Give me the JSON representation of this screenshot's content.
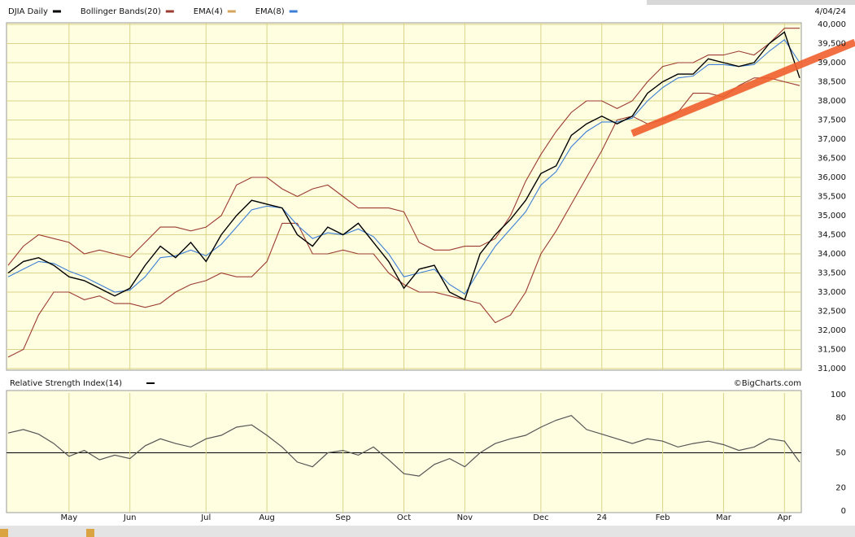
{
  "chart_data": [
    {
      "type": "line",
      "date": "4/04/24",
      "series": [
        {
          "name": "DJIA Daily",
          "color": "#000000",
          "values": [
            33500,
            33800,
            33900,
            33700,
            33400,
            33300,
            33100,
            32900,
            33100,
            33700,
            34200,
            33900,
            34300,
            33800,
            34500,
            35000,
            35400,
            35300,
            35200,
            34500,
            34200,
            34700,
            34500,
            34800,
            34300,
            33800,
            33100,
            33600,
            33700,
            33000,
            32800,
            34000,
            34500,
            34900,
            35400,
            36100,
            36300,
            37100,
            37400,
            37600,
            37400,
            37600,
            38200,
            38500,
            38700,
            38700,
            39100,
            39000,
            38900,
            39000,
            39500,
            39800,
            38600
          ]
        },
        {
          "name": "Bollinger Bands(20)",
          "color": "#9b3b32",
          "upper": [
            33700,
            34200,
            34500,
            34400,
            34300,
            34000,
            34100,
            34000,
            33900,
            34300,
            34700,
            34700,
            34600,
            34700,
            35000,
            35800,
            36000,
            36000,
            35700,
            35500,
            35700,
            35800,
            35500,
            35200,
            35200,
            35200,
            35100,
            34300,
            34100,
            34100,
            34200,
            34200,
            34400,
            35000,
            35900,
            36600,
            37200,
            37700,
            38000,
            38000,
            37800,
            38000,
            38500,
            38900,
            39000,
            39000,
            39200,
            39200,
            39300,
            39200,
            39500,
            39900,
            39900
          ],
          "lower": [
            31300,
            31500,
            32400,
            33000,
            33000,
            32800,
            32900,
            32700,
            32700,
            32600,
            32700,
            33000,
            33200,
            33300,
            33500,
            33400,
            33400,
            33800,
            34800,
            34800,
            34000,
            34000,
            34100,
            34000,
            34000,
            33500,
            33200,
            33000,
            33000,
            32900,
            32800,
            32700,
            32200,
            32400,
            33000,
            34000,
            34600,
            35300,
            36000,
            36700,
            37500,
            37600,
            37400,
            37500,
            37700,
            38200,
            38200,
            38100,
            38400,
            38600,
            38600,
            38500,
            38400
          ]
        },
        {
          "name": "EMA(4)",
          "color": "#d4a55a"
        },
        {
          "name": "EMA(8)",
          "color": "#3d7fd6",
          "values": [
            33400,
            33600,
            33800,
            33750,
            33550,
            33400,
            33200,
            33000,
            33050,
            33400,
            33900,
            33950,
            34100,
            33950,
            34250,
            34700,
            35150,
            35250,
            35200,
            34750,
            34400,
            34550,
            34500,
            34650,
            34450,
            34000,
            33400,
            33500,
            33600,
            33200,
            32950,
            33600,
            34200,
            34650,
            35100,
            35800,
            36150,
            36800,
            37200,
            37450,
            37450,
            37550,
            38000,
            38350,
            38600,
            38650,
            38950,
            38950,
            38900,
            38950,
            39300,
            39600,
            39000
          ]
        }
      ],
      "ylim": [
        31000,
        40000
      ],
      "yticks": [
        {
          "value": 31000,
          "label": "31,000"
        },
        {
          "value": 31500,
          "label": "31,500"
        },
        {
          "value": 32000,
          "label": "32,000"
        },
        {
          "value": 32500,
          "label": "32,500"
        },
        {
          "value": 33000,
          "label": "33,000"
        },
        {
          "value": 33500,
          "label": "33,500"
        },
        {
          "value": 34000,
          "label": "34,000"
        },
        {
          "value": 34500,
          "label": "34,500"
        },
        {
          "value": 35000,
          "label": "35,000"
        },
        {
          "value": 35500,
          "label": "35,500"
        },
        {
          "value": 36000,
          "label": "36,000"
        },
        {
          "value": 36500,
          "label": "36,500"
        },
        {
          "value": 37000,
          "label": "37,000"
        },
        {
          "value": 37500,
          "label": "37,500"
        },
        {
          "value": 38000,
          "label": "38,000"
        },
        {
          "value": 38500,
          "label": "38,500"
        },
        {
          "value": 39000,
          "label": "39,000"
        },
        {
          "value": 39500,
          "label": "39,500"
        },
        {
          "value": 40000,
          "label": "40,000"
        }
      ],
      "grid": true
    },
    {
      "type": "line",
      "title": "Relative Strength Index(14)",
      "source": "©BigCharts.com",
      "color": "#555555",
      "categories": [
        null,
        null,
        null,
        null,
        "May",
        null,
        null,
        null,
        "Jun",
        null,
        null,
        null,
        null,
        "Jul",
        null,
        null,
        null,
        "Aug",
        null,
        null,
        null,
        null,
        "Sep",
        null,
        null,
        null,
        "Oct",
        null,
        null,
        null,
        "Nov",
        null,
        null,
        null,
        null,
        "Dec",
        null,
        null,
        null,
        "24",
        null,
        null,
        null,
        "Feb",
        null,
        null,
        null,
        "Mar",
        null,
        null,
        null,
        "Apr",
        null
      ],
      "values": [
        67,
        70,
        66,
        58,
        47,
        52,
        44,
        48,
        45,
        56,
        62,
        58,
        55,
        62,
        65,
        72,
        74,
        65,
        55,
        42,
        38,
        50,
        52,
        48,
        55,
        44,
        32,
        30,
        40,
        45,
        38,
        50,
        58,
        62,
        65,
        72,
        78,
        82,
        70,
        66,
        62,
        58,
        62,
        60,
        55,
        58,
        60,
        57,
        52,
        55,
        62,
        60,
        42
      ],
      "ylim": [
        0,
        100
      ],
      "yticks": [
        0,
        20,
        50,
        80,
        100
      ],
      "grid": true
    }
  ]
}
